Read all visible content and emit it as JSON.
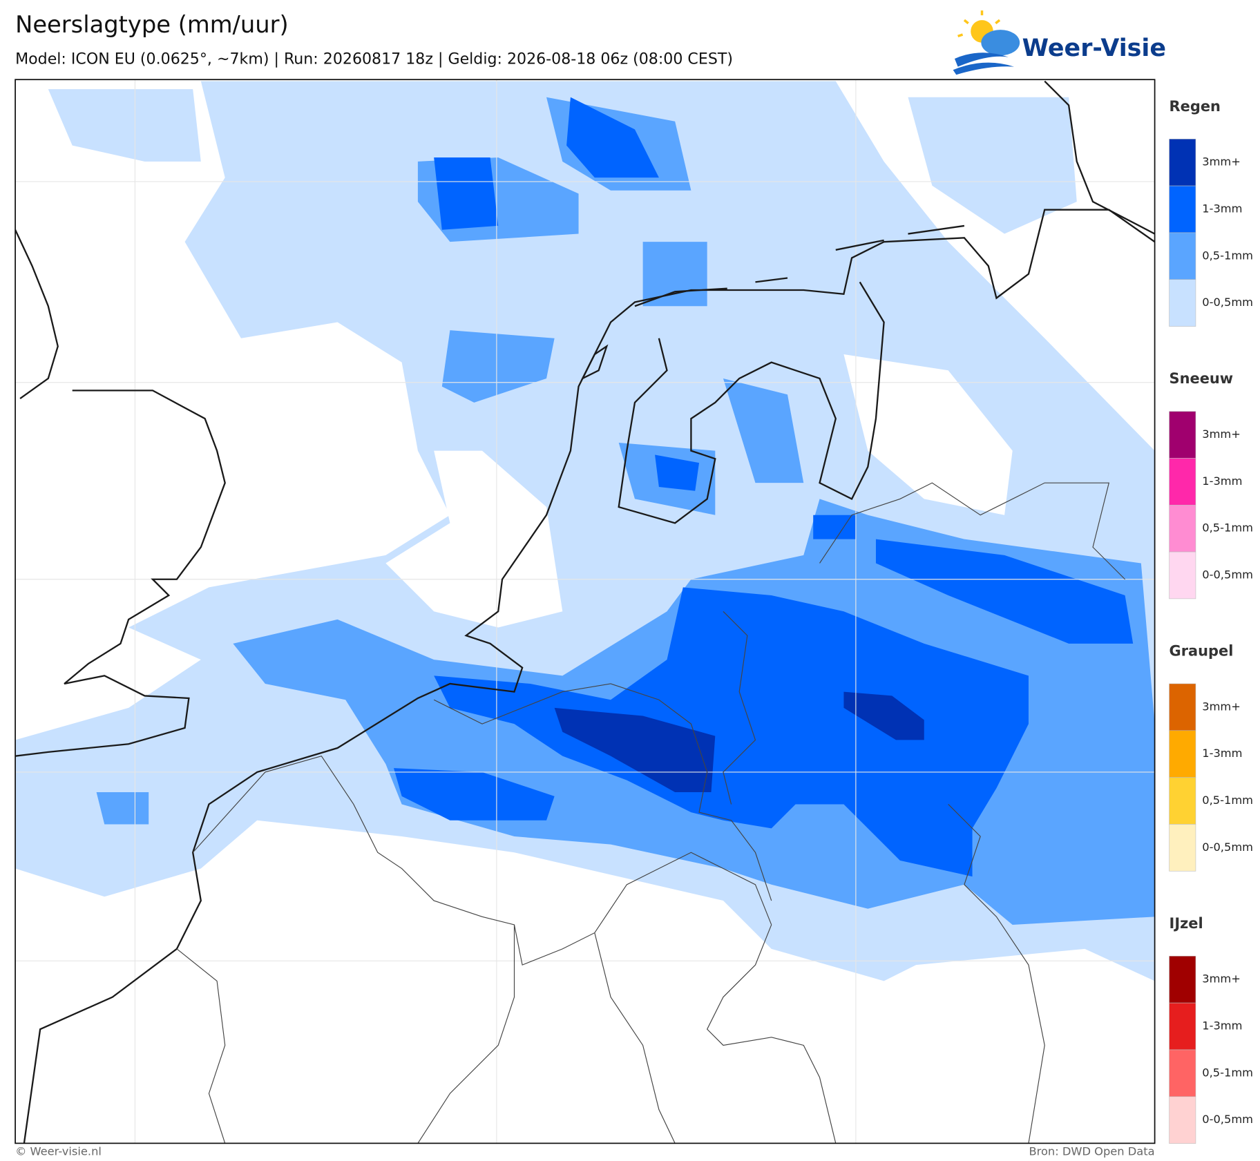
{
  "header": {
    "title": "Neerslagtype (mm/uur)",
    "subtitle": "Model: ICON EU (0.0625°, ~7km)  |  Run: 20260817 18z  |  Geldig: 2026-08-18 06z (08:00 CEST)",
    "logo": "Weer-Visie"
  },
  "legend": [
    {
      "name": "Regen",
      "items": [
        {
          "label": "3mm+",
          "color": "#0032b4"
        },
        {
          "label": "1-3mm",
          "color": "#0064ff"
        },
        {
          "label": "0,5-1mm",
          "color": "#5aa5ff"
        },
        {
          "label": "0-0,5mm",
          "color": "#c8e1ff"
        }
      ]
    },
    {
      "name": "Sneeuw",
      "items": [
        {
          "label": "3mm+",
          "color": "#a0006e"
        },
        {
          "label": "1-3mm",
          "color": "#ff28aa"
        },
        {
          "label": "0,5-1mm",
          "color": "#ff8cd2"
        },
        {
          "label": "0-0,5mm",
          "color": "#ffd7f0"
        }
      ]
    },
    {
      "name": "Graupel",
      "items": [
        {
          "label": "3mm+",
          "color": "#dc6400"
        },
        {
          "label": "1-3mm",
          "color": "#ffaa00"
        },
        {
          "label": "0,5-1mm",
          "color": "#ffd232"
        },
        {
          "label": "0-0,5mm",
          "color": "#fff0be"
        }
      ]
    },
    {
      "name": "IJzel",
      "items": [
        {
          "label": "3mm+",
          "color": "#a00000"
        },
        {
          "label": "1-3mm",
          "color": "#e61e1e"
        },
        {
          "label": "0,5-1mm",
          "color": "#ff6464"
        },
        {
          "label": "0-0,5mm",
          "color": "#ffd2d2"
        }
      ]
    }
  ],
  "footer": {
    "left": "© Weer-visie.nl",
    "right": "Bron: DWD Open Data"
  }
}
